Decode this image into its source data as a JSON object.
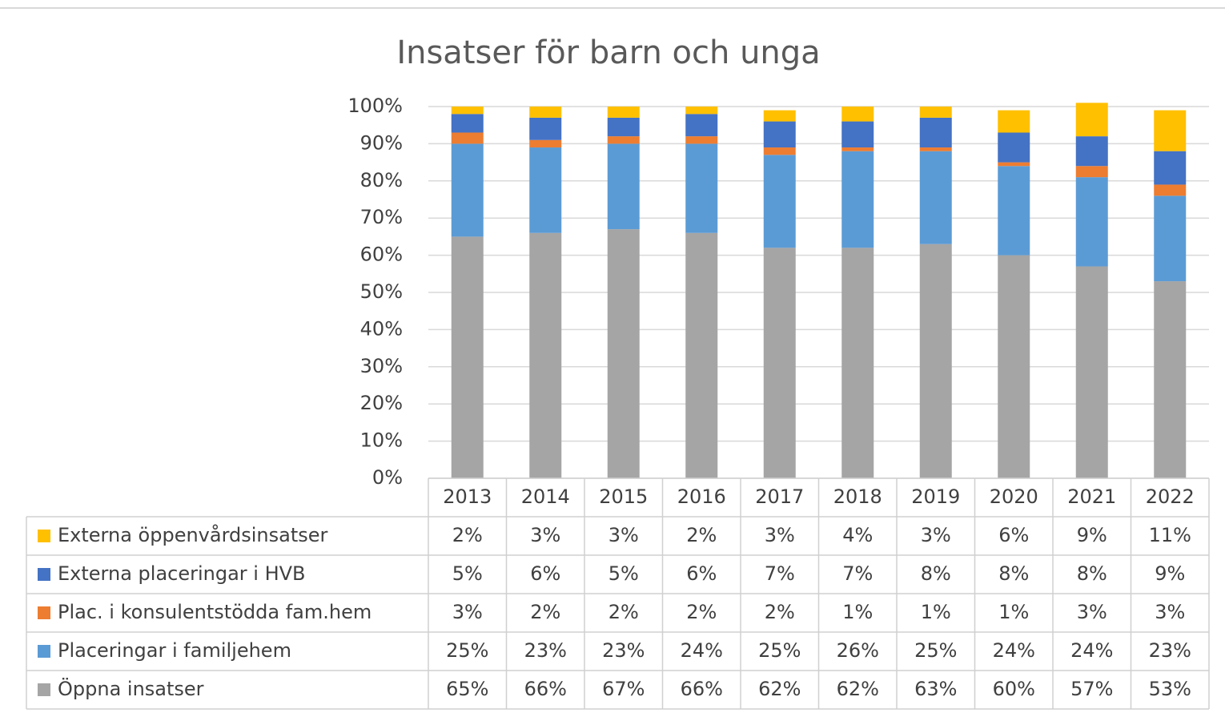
{
  "chart_data": {
    "type": "stacked_bar",
    "title": "Insatser för barn och unga",
    "categories": [
      "2013",
      "2014",
      "2015",
      "2016",
      "2017",
      "2018",
      "2019",
      "2020",
      "2021",
      "2022"
    ],
    "series": [
      {
        "name": "Öppna insatser",
        "color": "#a5a5a5",
        "values": [
          65,
          66,
          67,
          66,
          62,
          62,
          63,
          60,
          57,
          53
        ],
        "value_labels": [
          "65%",
          "66%",
          "67%",
          "66%",
          "62%",
          "62%",
          "63%",
          "60%",
          "57%",
          "53%"
        ]
      },
      {
        "name": "Placeringar i familjehem",
        "color": "#5b9bd5",
        "values": [
          25,
          23,
          23,
          24,
          25,
          26,
          25,
          24,
          24,
          23
        ],
        "value_labels": [
          "25%",
          "23%",
          "23%",
          "24%",
          "25%",
          "26%",
          "25%",
          "24%",
          "24%",
          "23%"
        ]
      },
      {
        "name": "Plac. i konsulentstödda fam.hem",
        "color": "#ed7d31",
        "values": [
          3,
          2,
          2,
          2,
          2,
          1,
          1,
          1,
          3,
          3
        ],
        "value_labels": [
          "3%",
          "2%",
          "2%",
          "2%",
          "2%",
          "1%",
          "1%",
          "1%",
          "3%",
          "3%"
        ]
      },
      {
        "name": "Externa placeringar i HVB",
        "color": "#4472c4",
        "values": [
          5,
          6,
          5,
          6,
          7,
          7,
          8,
          8,
          8,
          9
        ],
        "value_labels": [
          "5%",
          "6%",
          "5%",
          "6%",
          "7%",
          "7%",
          "8%",
          "8%",
          "8%",
          "9%"
        ]
      },
      {
        "name": "Externa öppenvårdsinsatser",
        "color": "#ffc000",
        "values": [
          2,
          3,
          3,
          2,
          3,
          4,
          3,
          6,
          9,
          11
        ],
        "value_labels": [
          "2%",
          "3%",
          "3%",
          "2%",
          "3%",
          "4%",
          "3%",
          "6%",
          "9%",
          "11%"
        ]
      }
    ],
    "ylim": [
      0,
      100
    ],
    "yticks": [
      {
        "value": 0,
        "label": "0%"
      },
      {
        "value": 10,
        "label": "10%"
      },
      {
        "value": 20,
        "label": "20%"
      },
      {
        "value": 30,
        "label": "30%"
      },
      {
        "value": 40,
        "label": "40%"
      },
      {
        "value": 50,
        "label": "50%"
      },
      {
        "value": 60,
        "label": "60%"
      },
      {
        "value": 70,
        "label": "70%"
      },
      {
        "value": 80,
        "label": "80%"
      },
      {
        "value": 90,
        "label": "90%"
      },
      {
        "value": 100,
        "label": "100%"
      }
    ],
    "grid": true
  }
}
